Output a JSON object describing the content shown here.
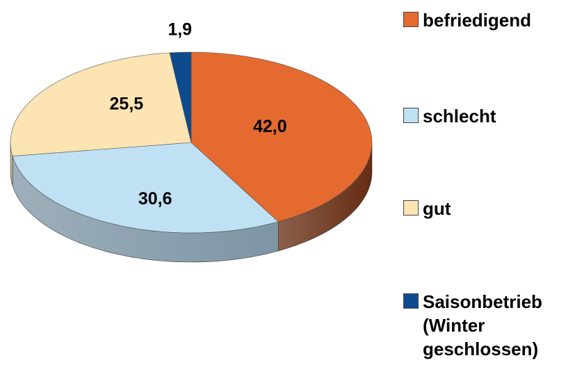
{
  "chart_data": {
    "type": "pie",
    "categories": [
      "befriedigend",
      "schlecht",
      "gut",
      "Saisonbetrieb (Winter geschlossen)"
    ],
    "values": [
      42.0,
      30.6,
      25.5,
      1.9
    ],
    "value_labels": [
      "42,0",
      "30,6",
      "25,5",
      "1,9"
    ],
    "colors": [
      "#e46a30",
      "#bfe1f3",
      "#fce4b3",
      "#0e4a8e"
    ]
  }
}
